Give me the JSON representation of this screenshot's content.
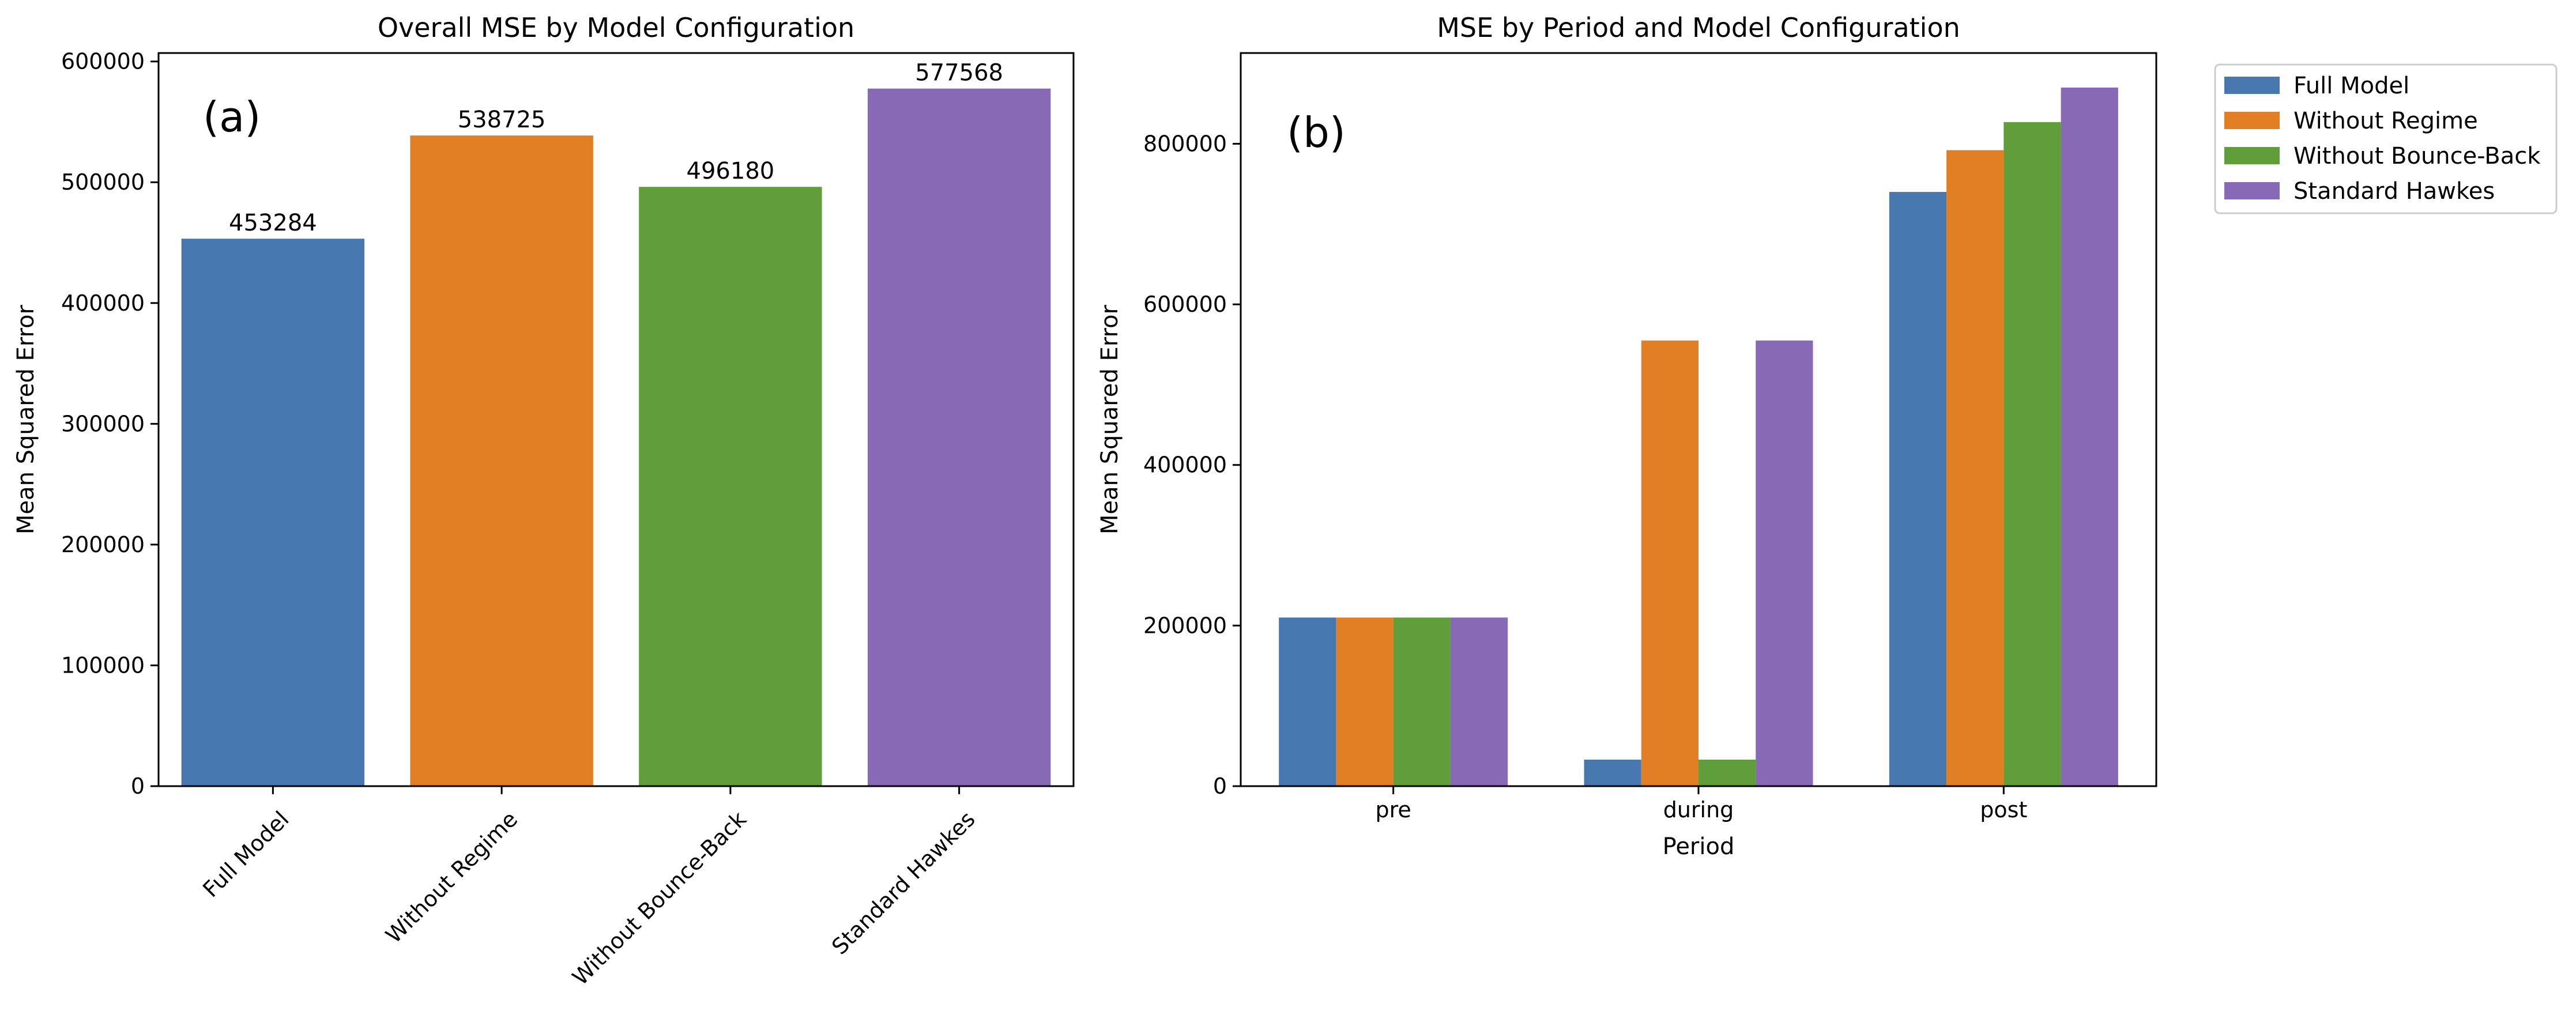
{
  "chart_data": [
    {
      "type": "bar",
      "title": "Overall MSE by Model Configuration",
      "panel_label": "(a)",
      "xlabel": "",
      "ylabel": "Mean Squared Error",
      "categories": [
        "Full Model",
        "Without Regime",
        "Without Bounce-Back",
        "Standard Hawkes"
      ],
      "values": [
        453284,
        538725,
        496180,
        577568
      ],
      "data_labels": [
        "453284",
        "538725",
        "496180",
        "577568"
      ],
      "colors": [
        "#4878b0",
        "#e27e24",
        "#5f9e3a",
        "#8869b6"
      ],
      "ylim": [
        0,
        607000
      ],
      "yticks": [
        0,
        100000,
        200000,
        300000,
        400000,
        500000,
        600000
      ],
      "ytick_labels": [
        "0",
        "100000",
        "200000",
        "300000",
        "400000",
        "500000",
        "600000"
      ],
      "x_tick_rotation": 45,
      "grid": false
    },
    {
      "type": "bar",
      "title": "MSE by Period and Model Configuration",
      "panel_label": "(b)",
      "xlabel": "Period",
      "ylabel": "Mean Squared Error",
      "categories": [
        "pre",
        "during",
        "post"
      ],
      "series": [
        {
          "name": "Full Model",
          "values": [
            210000,
            33000,
            740000
          ],
          "color": "#4878b0"
        },
        {
          "name": "Without Regime",
          "values": [
            210000,
            555000,
            792000
          ],
          "color": "#e27e24"
        },
        {
          "name": "Without Bounce-Back",
          "values": [
            210000,
            33000,
            827000
          ],
          "color": "#5f9e3a"
        },
        {
          "name": "Standard Hawkes",
          "values": [
            210000,
            555000,
            870000
          ],
          "color": "#8869b6"
        }
      ],
      "ylim": [
        0,
        913000
      ],
      "yticks": [
        0,
        200000,
        400000,
        600000,
        800000
      ],
      "ytick_labels": [
        "0",
        "200000",
        "400000",
        "600000",
        "800000"
      ],
      "legend": "outside-top-right",
      "grid": false
    }
  ]
}
